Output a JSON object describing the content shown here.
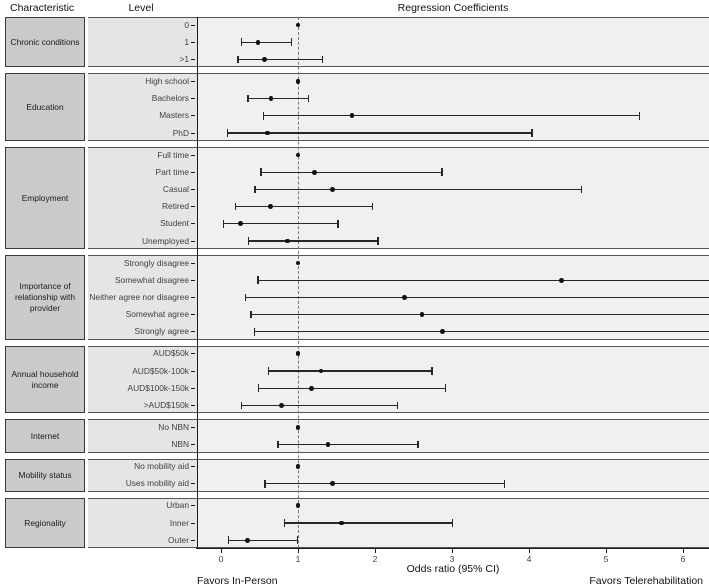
{
  "header": {
    "characteristic": "Characteristic",
    "level": "Level",
    "coefficients": "Regression Coefficients"
  },
  "axis": {
    "label": "Odds ratio (95% CI)",
    "left_note": "Favors In-Person",
    "right_note": "Favors Telerehabilitation"
  },
  "colors": {
    "band_level": "#e5e5e5",
    "band_plot": "#f0f0f0",
    "band_border": "#555555",
    "box_fill": "#cacaca",
    "box_border": "#3a3a3a",
    "text": "#1a1a1a",
    "muted_text": "#404040",
    "point": "#111111",
    "ci": "#262626",
    "dashed": "#777777",
    "axis": "#1a1a1a"
  },
  "chart_data": {
    "type": "forest",
    "title": "Regression Coefficients",
    "xlabel": "Odds ratio (95% CI)",
    "xlim": [
      -0.3,
      6.35
    ],
    "x_ticks": [
      0,
      1,
      2,
      3,
      4,
      5,
      6
    ],
    "reference_line": 1,
    "legend": "point = odds ratio, whiskers = 95% CI; rows with hi null and hi_clipped extend beyond right axis limit",
    "groups": [
      {
        "characteristic": "Chronic conditions",
        "rows": [
          {
            "level": "0",
            "or": 1.0,
            "lo": null,
            "hi": null,
            "reference": true
          },
          {
            "level": "1",
            "or": 0.48,
            "lo": 0.27,
            "hi": 0.92
          },
          {
            "level": ">1",
            "or": 0.56,
            "lo": 0.22,
            "hi": 1.32
          }
        ]
      },
      {
        "characteristic": "Education",
        "rows": [
          {
            "level": "High school",
            "or": 1.0,
            "lo": null,
            "hi": null,
            "reference": true
          },
          {
            "level": "Bachelors",
            "or": 0.65,
            "lo": 0.35,
            "hi": 1.14
          },
          {
            "level": "Masters",
            "or": 1.7,
            "lo": 0.55,
            "hi": 5.44
          },
          {
            "level": "PhD",
            "or": 0.6,
            "lo": 0.08,
            "hi": 4.04
          }
        ]
      },
      {
        "characteristic": "Employment",
        "rows": [
          {
            "level": "Full time",
            "or": 1.0,
            "lo": null,
            "hi": null,
            "reference": true
          },
          {
            "level": "Part time",
            "or": 1.21,
            "lo": 0.52,
            "hi": 2.87
          },
          {
            "level": "Casual",
            "or": 1.45,
            "lo": 0.44,
            "hi": 4.68
          },
          {
            "level": "Retired",
            "or": 0.64,
            "lo": 0.19,
            "hi": 1.97
          },
          {
            "level": "Student",
            "or": 0.25,
            "lo": 0.03,
            "hi": 1.52
          },
          {
            "level": "Unemployed",
            "or": 0.86,
            "lo": 0.36,
            "hi": 2.04
          }
        ]
      },
      {
        "characteristic": "Importance of relationship with provider",
        "rows": [
          {
            "level": "Strongly disagree",
            "or": 1.0,
            "lo": null,
            "hi": null,
            "reference": true
          },
          {
            "level": "Somewhat disagree",
            "or": 4.42,
            "lo": 0.48,
            "hi": null,
            "hi_clipped": true
          },
          {
            "level": "Neither agree nor disagree",
            "or": 2.38,
            "lo": 0.32,
            "hi": null,
            "hi_clipped": true
          },
          {
            "level": "Somewhat agree",
            "or": 2.61,
            "lo": 0.39,
            "hi": null,
            "hi_clipped": true
          },
          {
            "level": "Strongly agree",
            "or": 2.88,
            "lo": 0.43,
            "hi": null,
            "hi_clipped": true
          }
        ]
      },
      {
        "characteristic": "Annual household income",
        "rows": [
          {
            "level": "AUD$50k",
            "or": 1.0,
            "lo": null,
            "hi": null,
            "reference": true
          },
          {
            "level": "AUD$50k-100k",
            "or": 1.3,
            "lo": 0.62,
            "hi": 2.74
          },
          {
            "level": "AUD$100k-150k",
            "or": 1.18,
            "lo": 0.49,
            "hi": 2.92
          },
          {
            "level": ">AUD$150k",
            "or": 0.79,
            "lo": 0.27,
            "hi": 2.29
          }
        ]
      },
      {
        "characteristic": "Internet",
        "rows": [
          {
            "level": "No NBN",
            "or": 1.0,
            "lo": null,
            "hi": null,
            "reference": true
          },
          {
            "level": "NBN",
            "or": 1.39,
            "lo": 0.74,
            "hi": 2.56
          }
        ]
      },
      {
        "characteristic": "Mobility status",
        "rows": [
          {
            "level": "No mobility aid",
            "or": 1.0,
            "lo": null,
            "hi": null,
            "reference": true
          },
          {
            "level": "Uses mobility aid",
            "or": 1.45,
            "lo": 0.57,
            "hi": 3.68
          }
        ]
      },
      {
        "characteristic": "Regionality",
        "rows": [
          {
            "level": "Urban",
            "or": 1.0,
            "lo": null,
            "hi": null,
            "reference": true
          },
          {
            "level": "Inner",
            "or": 1.57,
            "lo": 0.82,
            "hi": 3.01
          },
          {
            "level": "Outer",
            "or": 0.34,
            "lo": 0.1,
            "hi": 0.99
          }
        ]
      }
    ]
  }
}
